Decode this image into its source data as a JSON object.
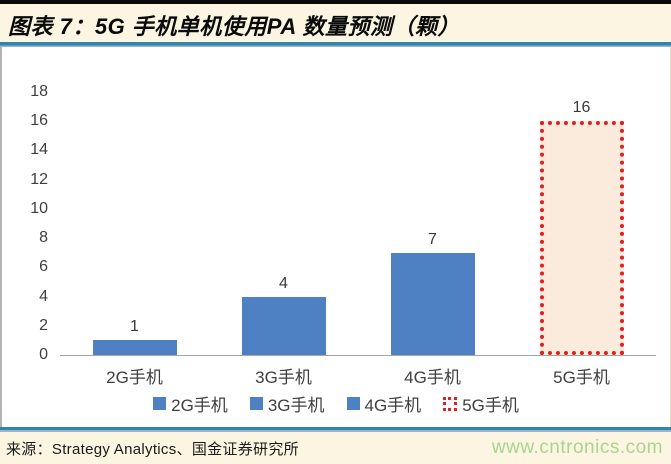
{
  "header": {
    "title": "图表 7：5G 手机单机使用PA 数量预测（颗）"
  },
  "footer": {
    "source": "来源：Strategy Analytics、国金证券研究所",
    "website": "www.cntronics.com"
  },
  "colors": {
    "bar_blue": "#4E81C4",
    "forecast_fill": "#FAEBDC",
    "forecast_border_red": "#E02020",
    "accent_line_blue": "#2F85AD",
    "website_green": "#A9D58F",
    "page_cream": "#FBF5E2"
  },
  "chart_data": {
    "type": "bar",
    "title": "5G 手机单机使用PA 数量预测（颗）",
    "categories": [
      "2G手机",
      "3G手机",
      "4G手机",
      "5G手机"
    ],
    "values": [
      1,
      4,
      7,
      16
    ],
    "bar_styles": [
      "solid",
      "solid",
      "solid",
      "dotted-outline"
    ],
    "xlabel": "",
    "ylabel": "",
    "ylim": [
      0,
      18
    ],
    "ytick_step": 2,
    "grid": false,
    "legend_position": "bottom",
    "legend": [
      "2G手机",
      "3G手机",
      "4G手机",
      "5G手机"
    ]
  }
}
